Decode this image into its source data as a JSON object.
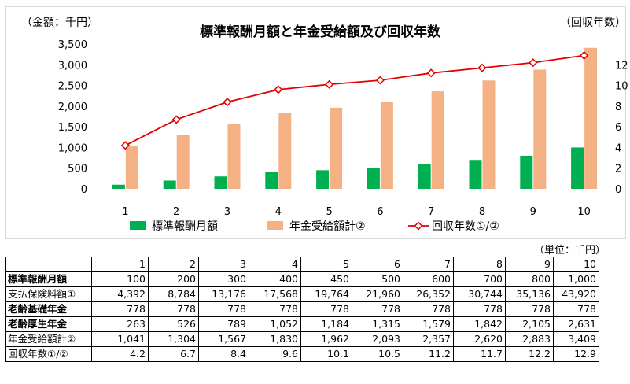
{
  "chart_data": {
    "type": "bar+line",
    "title": "標準報酬月額と年金受給額及び回収年数",
    "left_axis_unit": "（金額：千円）",
    "right_axis_unit": "（回収年数）",
    "categories": [
      "1",
      "2",
      "3",
      "4",
      "5",
      "6",
      "7",
      "8",
      "9",
      "10"
    ],
    "y_left_ticks": [
      "0",
      "500",
      "1,000",
      "1,500",
      "2,000",
      "2,500",
      "3,000",
      "3,500"
    ],
    "y_left_lim": [
      0,
      3500
    ],
    "y_right_ticks": [
      "0",
      "2",
      "4",
      "6",
      "8",
      "10",
      "12"
    ],
    "y_right_lim": [
      0,
      14
    ],
    "series": [
      {
        "name": "標準報酬月額",
        "type": "bar",
        "axis": "left",
        "color": "#00b050",
        "values": [
          100,
          200,
          300,
          400,
          450,
          500,
          600,
          700,
          800,
          1000
        ]
      },
      {
        "name": "年金受給額計②",
        "type": "bar",
        "axis": "left",
        "color": "#f4b183",
        "values": [
          1041,
          1304,
          1567,
          1830,
          1962,
          2093,
          2357,
          2620,
          2883,
          3409
        ]
      },
      {
        "name": "回収年数①/②",
        "type": "line",
        "axis": "right",
        "color": "#e00000",
        "values": [
          4.2,
          6.7,
          8.4,
          9.6,
          10.1,
          10.5,
          11.2,
          11.7,
          12.2,
          12.9
        ]
      }
    ],
    "legend_position": "bottom",
    "grid": false
  },
  "table": {
    "unit_note": "（単位：千円）",
    "headers": [
      "",
      "1",
      "2",
      "3",
      "4",
      "5",
      "6",
      "7",
      "8",
      "9",
      "10"
    ],
    "rows": [
      {
        "label": "標準報酬月額",
        "values": [
          "100",
          "200",
          "300",
          "400",
          "450",
          "500",
          "600",
          "700",
          "800",
          "1,000"
        ]
      },
      {
        "label": "支払保険料額①",
        "values": [
          "4,392",
          "8,784",
          "13,176",
          "17,568",
          "19,764",
          "21,960",
          "26,352",
          "30,744",
          "35,136",
          "43,920"
        ]
      },
      {
        "label": "老齢基礎年金",
        "values": [
          "778",
          "778",
          "778",
          "778",
          "778",
          "778",
          "778",
          "778",
          "778",
          "778"
        ]
      },
      {
        "label": "老齢厚生年金",
        "values": [
          "263",
          "526",
          "789",
          "1,052",
          "1,184",
          "1,315",
          "1,579",
          "1,842",
          "2,105",
          "2,631"
        ]
      },
      {
        "label": "年金受給額計②",
        "values": [
          "1,041",
          "1,304",
          "1,567",
          "1,830",
          "1,962",
          "2,093",
          "2,357",
          "2,620",
          "2,883",
          "3,409"
        ]
      },
      {
        "label": "回収年数①/②",
        "values": [
          "4.2",
          "6.7",
          "8.4",
          "9.6",
          "10.1",
          "10.5",
          "11.2",
          "11.7",
          "12.2",
          "12.9"
        ]
      }
    ]
  }
}
